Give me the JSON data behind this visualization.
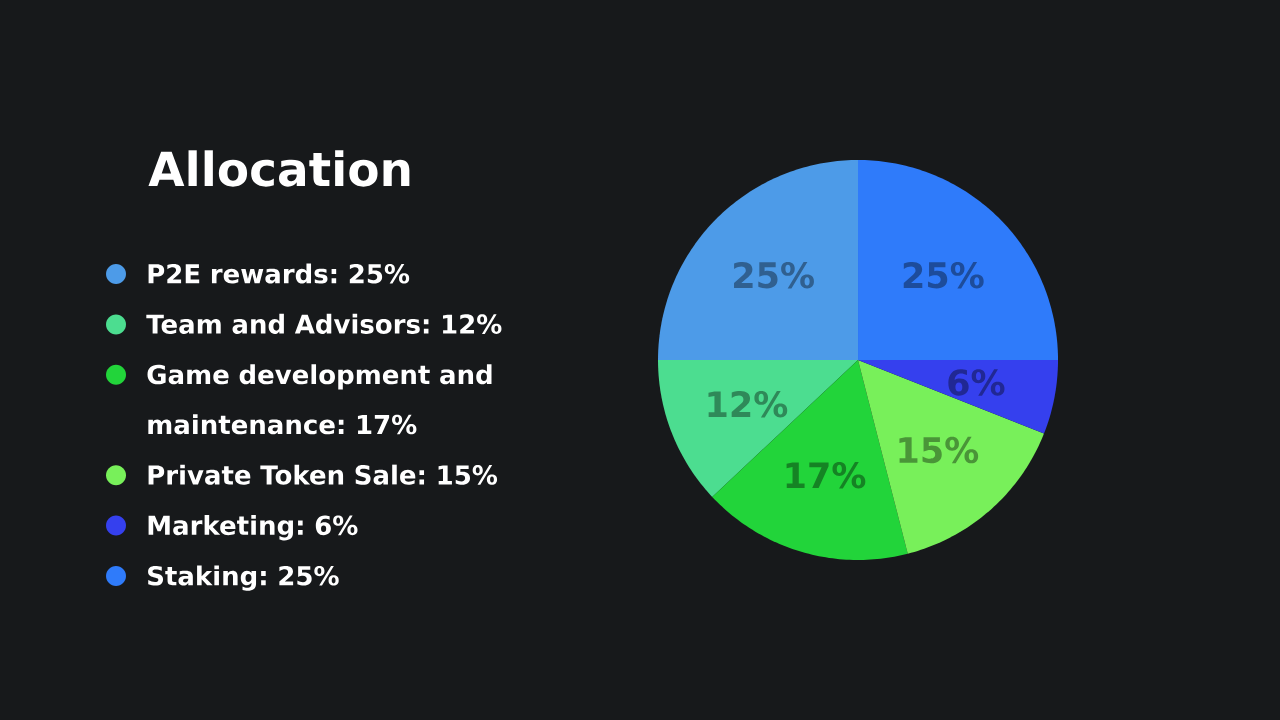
{
  "chart_data": {
    "type": "pie",
    "title": "Allocation",
    "categories": [
      "P2E rewards: 25%",
      "Team and Advisors: 12%",
      "Game development and maintenance: 17%",
      "Private Token Sale: 15%",
      "Marketing: 6%",
      "Staking: 25%"
    ],
    "values": [
      25,
      12,
      17,
      15,
      6,
      25
    ],
    "colors": [
      "#4d9be8",
      "#4cdd90",
      "#22d43a",
      "#78f05a",
      "#3540ee",
      "#2f7bfa"
    ],
    "value_labels": [
      "25%",
      "12%",
      "17%",
      "15%",
      "6%",
      "25%"
    ],
    "legend": "left"
  }
}
